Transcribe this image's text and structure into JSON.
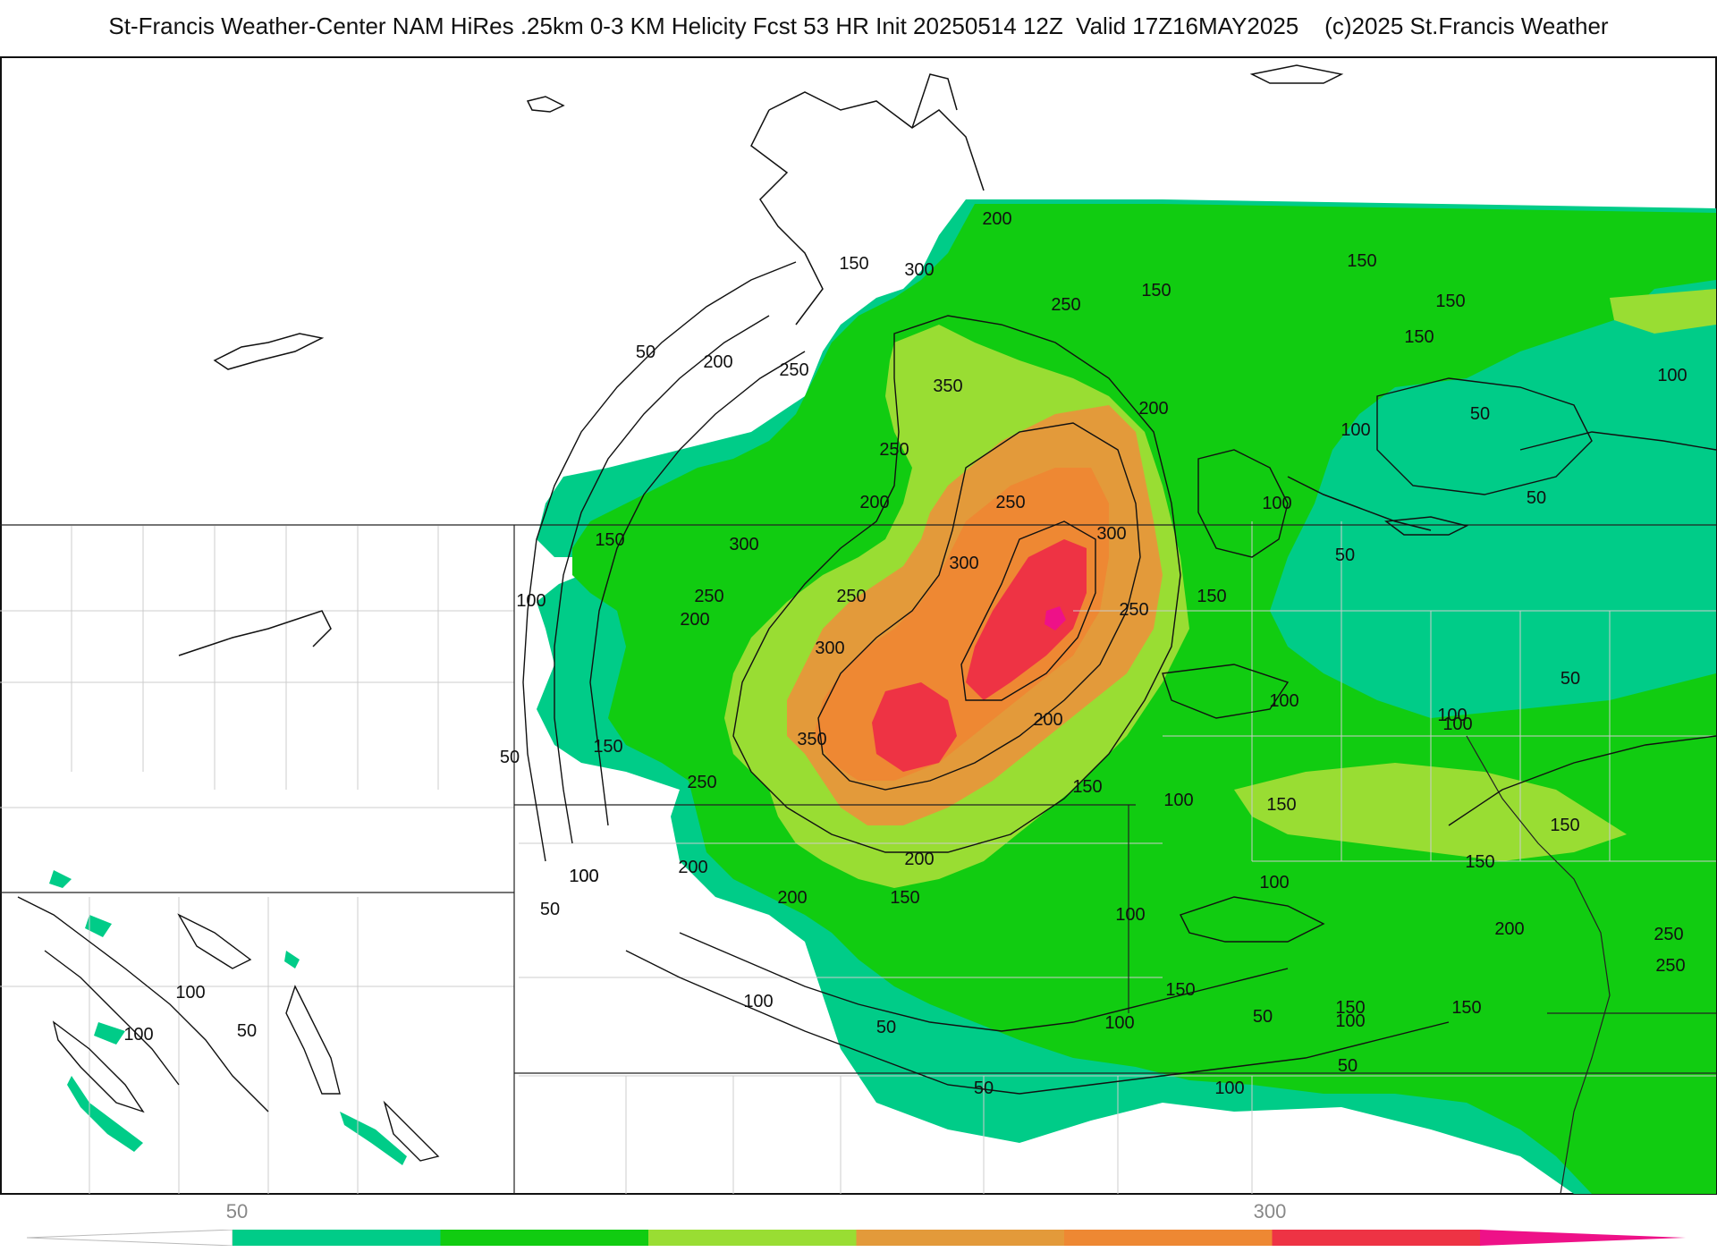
{
  "title": "St-Francis Weather-Center NAM HiRes .25km 0-3 KM Helicity Fcst 53 HR Init 20250514 12Z  Valid 17Z16MAY2025    (c)2025 St.Francis Weather",
  "colorbar": {
    "ticks": [
      "50",
      "300"
    ],
    "bins": [
      {
        "range": "<50",
        "color": "#ffffff"
      },
      {
        "range": "50-100",
        "color": "#00cc88"
      },
      {
        "range": "100-150",
        "color": "#11cc11"
      },
      {
        "range": "150-200",
        "color": "#99dd33"
      },
      {
        "range": "200-250",
        "color": "#e39a3a"
      },
      {
        "range": "250-300",
        "color": "#ee8833"
      },
      {
        "range": "300-350",
        "color": "#ee3344"
      },
      {
        "range": ">350",
        "color": "#ee1188"
      }
    ]
  },
  "contour_labels": [
    "50",
    "100",
    "150",
    "200",
    "250",
    "300",
    "350"
  ],
  "map_labels": {
    "l1": "200",
    "l2": "150",
    "l3": "300",
    "l4": "250",
    "l5": "150",
    "l6": "150",
    "l7": "150",
    "l8": "100",
    "l9": "50",
    "l10": "200",
    "l11": "250",
    "l12": "350",
    "l13": "200",
    "l14": "150",
    "l15": "250",
    "l16": "200",
    "l17": "250",
    "l18": "300",
    "l19": "100",
    "l20": "50",
    "l21": "100",
    "l22": "50",
    "l23": "300",
    "l24": "250",
    "l25": "200",
    "l26": "300",
    "l27": "150",
    "l28": "250",
    "l29": "250",
    "l30": "100",
    "l31": "300",
    "l32": "50",
    "l33": "350",
    "l34": "200",
    "l35": "100",
    "l36": "150",
    "l37": "250",
    "l38": "150",
    "l39": "150",
    "l40": "100",
    "l41": "50",
    "l42": "200",
    "l43": "200",
    "l44": "100",
    "l45": "150",
    "l46": "150",
    "l47": "100",
    "l48": "150",
    "l49": "50",
    "l50": "100",
    "l51": "200",
    "l52": "250",
    "l53": "250",
    "l54": "100",
    "l55": "150",
    "l56": "100",
    "l57": "50",
    "l58": "100",
    "l59": "200",
    "l60": "150",
    "l61": "50",
    "l62": "100",
    "l63": "50",
    "l64": "100",
    "l65": "50",
    "l66": "100",
    "l67": "100",
    "l68": "100",
    "l69": "100",
    "l70": "50",
    "l71": "150",
    "l72": "150",
    "l73": "50"
  }
}
